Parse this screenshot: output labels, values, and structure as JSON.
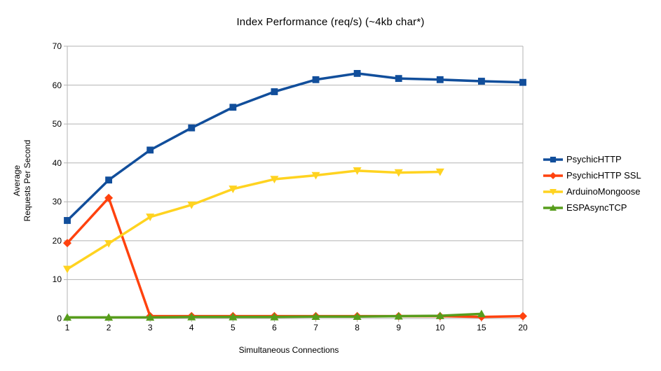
{
  "chart_data": {
    "type": "line",
    "title": "Index Performance (req/s) (~4kb char*)",
    "xlabel": "Simultaneous Connections",
    "ylabel_lines": [
      "Average",
      "Requests Per Second"
    ],
    "categories": [
      "1",
      "2",
      "3",
      "4",
      "5",
      "6",
      "7",
      "8",
      "9",
      "10",
      "15",
      "20"
    ],
    "y_ticks": [
      0,
      10,
      20,
      30,
      40,
      50,
      60,
      70
    ],
    "ylim": [
      0,
      70
    ],
    "grid": "horizontal",
    "grid_color": "#b3b3b3",
    "axis_color": "#b3b3b3",
    "legend_position": "right",
    "series": [
      {
        "name": "PsychicHTTP",
        "color": "#114E9B",
        "marker": "square",
        "values": [
          25.2,
          35.6,
          43.3,
          49,
          54.3,
          58.3,
          61.4,
          63,
          61.7,
          61.4,
          61,
          60.7
        ]
      },
      {
        "name": "PsychicHTTP SSL",
        "color": "#FF420E",
        "marker": "diamond",
        "values": [
          19.4,
          31,
          0.6,
          0.6,
          0.6,
          0.6,
          0.6,
          0.6,
          0.6,
          0.6,
          0.4,
          0.6
        ]
      },
      {
        "name": "ArduinoMongoose",
        "color": "#FFD320",
        "marker": "triangle-down",
        "values": [
          12.7,
          19.3,
          26.1,
          29.2,
          33.3,
          35.8,
          36.8,
          38,
          37.5,
          37.7,
          null,
          null
        ]
      },
      {
        "name": "ESPAsyncTCP",
        "color": "#579D1C",
        "marker": "triangle-up",
        "values": [
          0.3,
          0.3,
          0.3,
          0.4,
          0.4,
          0.4,
          0.5,
          0.5,
          0.6,
          0.7,
          1.2,
          null
        ]
      }
    ]
  }
}
